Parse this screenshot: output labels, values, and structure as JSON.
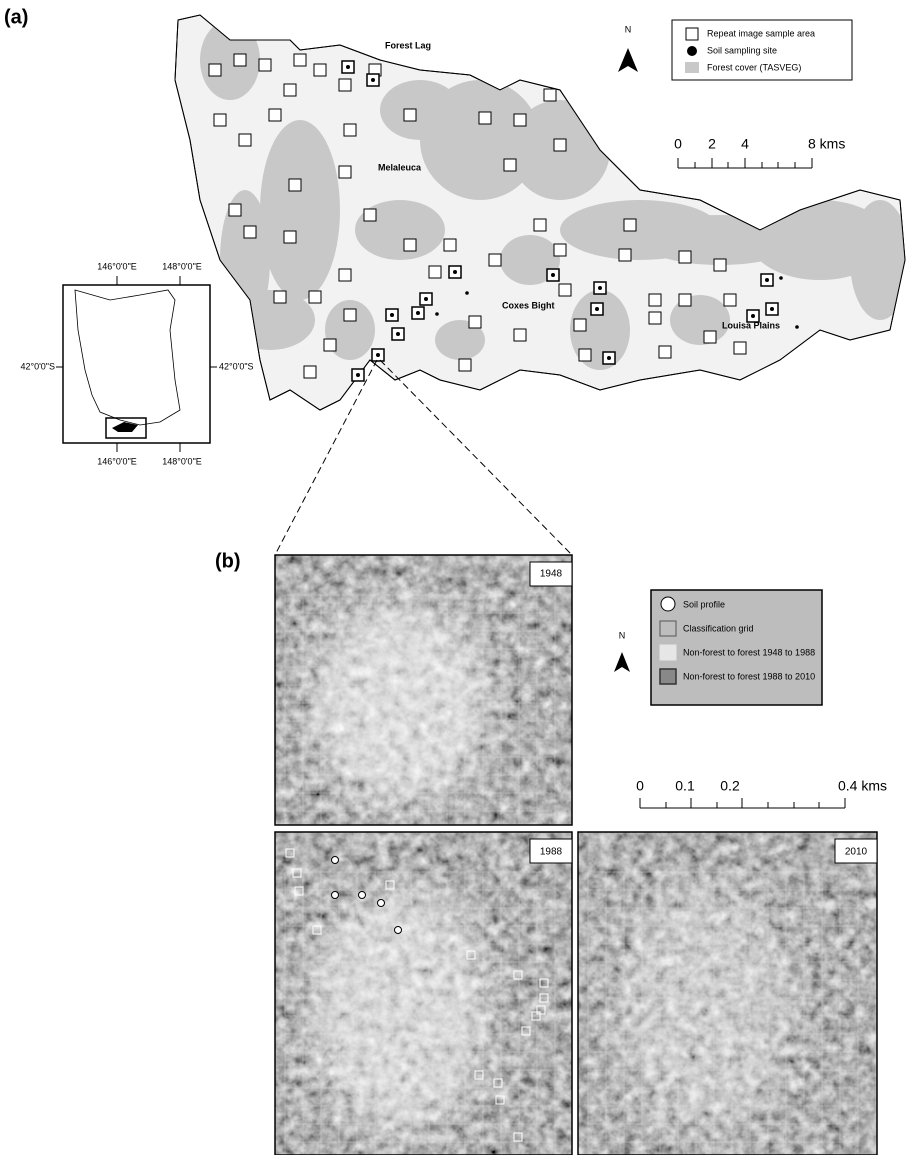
{
  "panel_a": {
    "label": "(a)",
    "places": [
      "Forest Lag",
      "Melaleuca",
      "Coxes Bight",
      "Louisa Plains"
    ],
    "north": "N",
    "legend": [
      "Repeat image sample area",
      "Soil sampling site",
      "Forest cover (TASVEG)"
    ],
    "scale": [
      "0",
      "2",
      "4",
      "8 kms"
    ],
    "inset": {
      "top": [
        "146°0'0\"E",
        "148°0'0\"E"
      ],
      "bottom": [
        "146°0'0\"E",
        "148°0'0\"E"
      ],
      "left": "42°0'0\"S",
      "right": "42°0'0\"S"
    }
  },
  "panel_b": {
    "label": "(b)",
    "years": [
      "1948",
      "1988",
      "2010"
    ],
    "legend": [
      "Soil profile",
      "Classification grid",
      "Non-forest to forest 1948 to 1988",
      "Non-forest to forest 1988 to 2010"
    ],
    "north": "N",
    "scale": [
      "0",
      "0.1",
      "0.2",
      "0.4 kms"
    ]
  }
}
